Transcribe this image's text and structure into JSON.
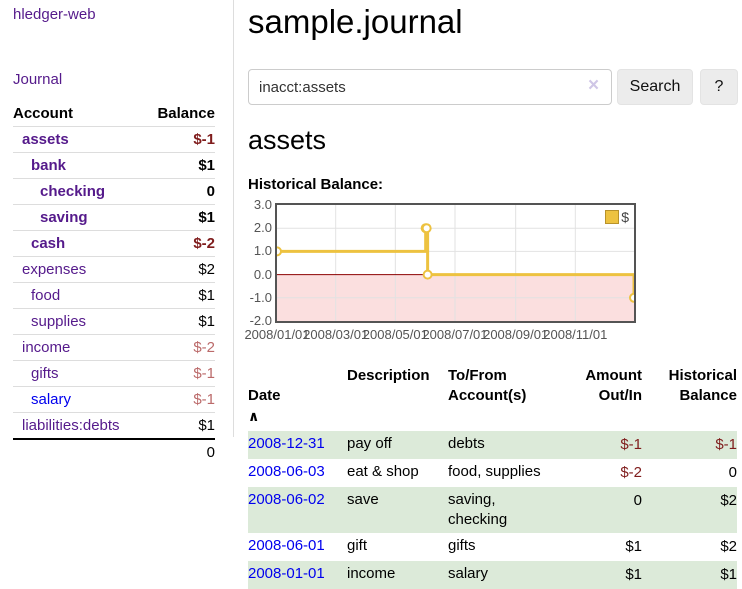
{
  "colors": {
    "link_purple": "#551A8B",
    "link_blue": "#0000EE",
    "negative_strong": "#7f1c1c",
    "negative_light": "#bb6a6a",
    "row_stripe_green": "#dcead9",
    "chart_series_yellow": "#EDC240",
    "chart_negative_region": "#fbdfdf",
    "chart_zero_line": "#8b0000",
    "chart_border": "#545454"
  },
  "sidebar": {
    "brand": "hledger-web",
    "nav_journal": "Journal",
    "accounts_table": {
      "headers": {
        "account": "Account",
        "balance": "Balance"
      },
      "rows": [
        {
          "account": "assets",
          "balance": "$-1",
          "level": 0,
          "bold": true,
          "balance_color": "neg-strong",
          "link_color": "purple"
        },
        {
          "account": "bank",
          "balance": "$1",
          "level": 1,
          "bold": true,
          "balance_color": "pos",
          "link_color": "purple"
        },
        {
          "account": "checking",
          "balance": "0",
          "level": 2,
          "bold": true,
          "balance_color": "pos",
          "link_color": "purple"
        },
        {
          "account": "saving",
          "balance": "$1",
          "level": 2,
          "bold": true,
          "balance_color": "pos",
          "link_color": "purple"
        },
        {
          "account": "cash",
          "balance": "$-2",
          "level": 1,
          "bold": true,
          "balance_color": "neg-strong",
          "link_color": "purple"
        },
        {
          "account": "expenses",
          "balance": "$2",
          "level": 0,
          "bold": false,
          "balance_color": "pos",
          "link_color": "purple"
        },
        {
          "account": "food",
          "balance": "$1",
          "level": 1,
          "bold": false,
          "balance_color": "pos",
          "link_color": "purple"
        },
        {
          "account": "supplies",
          "balance": "$1",
          "level": 1,
          "bold": false,
          "balance_color": "pos",
          "link_color": "purple"
        },
        {
          "account": "income",
          "balance": "$-2",
          "level": 0,
          "bold": false,
          "balance_color": "neg-light",
          "link_color": "purple"
        },
        {
          "account": "gifts",
          "balance": "$-1",
          "level": 1,
          "bold": false,
          "balance_color": "neg-light",
          "link_color": "purple"
        },
        {
          "account": "salary",
          "balance": "$-1",
          "level": 1,
          "bold": false,
          "balance_color": "neg-light",
          "link_color": "blue"
        },
        {
          "account": "liabilities:debts",
          "balance": "$1",
          "level": 0,
          "bold": false,
          "balance_color": "pos",
          "link_color": "purple"
        }
      ],
      "total": "0"
    }
  },
  "main": {
    "title": "sample.journal",
    "search": {
      "value": "inacct:assets",
      "clear_icon": "×",
      "search_button": "Search",
      "help_button": "?"
    },
    "account_heading": "assets",
    "section_label": "Historical Balance:"
  },
  "chart_data": {
    "type": "line",
    "step": true,
    "title": "Historical Balance of assets",
    "x_range": [
      "2008-01-01",
      "2008-12-31"
    ],
    "y_range": [
      -2,
      3
    ],
    "y_ticks": [
      "3.0",
      "2.0",
      "1.0",
      "0.0",
      "-1.0",
      "-2.0"
    ],
    "x_ticks": [
      "2008/01/01",
      "2008/03/01",
      "2008/05/01",
      "2008/07/01",
      "2008/09/01",
      "2008/11/01"
    ],
    "legend_label": "$",
    "legend_position": "top-right",
    "grid": true,
    "series": [
      {
        "name": "$",
        "color": "#EDC240",
        "points": [
          [
            "2008-01-01",
            1
          ],
          [
            "2008-06-01",
            2
          ],
          [
            "2008-06-02",
            2
          ],
          [
            "2008-06-03",
            0
          ],
          [
            "2008-12-31",
            -1
          ]
        ]
      }
    ]
  },
  "register": {
    "headers": {
      "date": "Date",
      "sort_icon": "∧",
      "description": "Description",
      "tofrom": "To/From\nAccount(s)",
      "amount": "Amount\nOut/In",
      "balance": "Historical\nBalance"
    },
    "rows": [
      {
        "date": "2008-12-31",
        "description": "pay off",
        "tofrom": "debts",
        "amount": "$-1",
        "amount_color": "neg",
        "balance": "$-1",
        "balance_color": "neg"
      },
      {
        "date": "2008-06-03",
        "description": "eat & shop",
        "tofrom": "food, supplies",
        "amount": "$-2",
        "amount_color": "neg",
        "balance": "0",
        "balance_color": "pos"
      },
      {
        "date": "2008-06-02",
        "description": "save",
        "tofrom": "saving,\nchecking",
        "amount": "0",
        "amount_color": "pos",
        "balance": "$2",
        "balance_color": "pos"
      },
      {
        "date": "2008-06-01",
        "description": "gift",
        "tofrom": "gifts",
        "amount": "$1",
        "amount_color": "pos",
        "balance": "$2",
        "balance_color": "pos"
      },
      {
        "date": "2008-01-01",
        "description": "income",
        "tofrom": "salary",
        "amount": "$1",
        "amount_color": "pos",
        "balance": "$1",
        "balance_color": "pos"
      }
    ]
  }
}
